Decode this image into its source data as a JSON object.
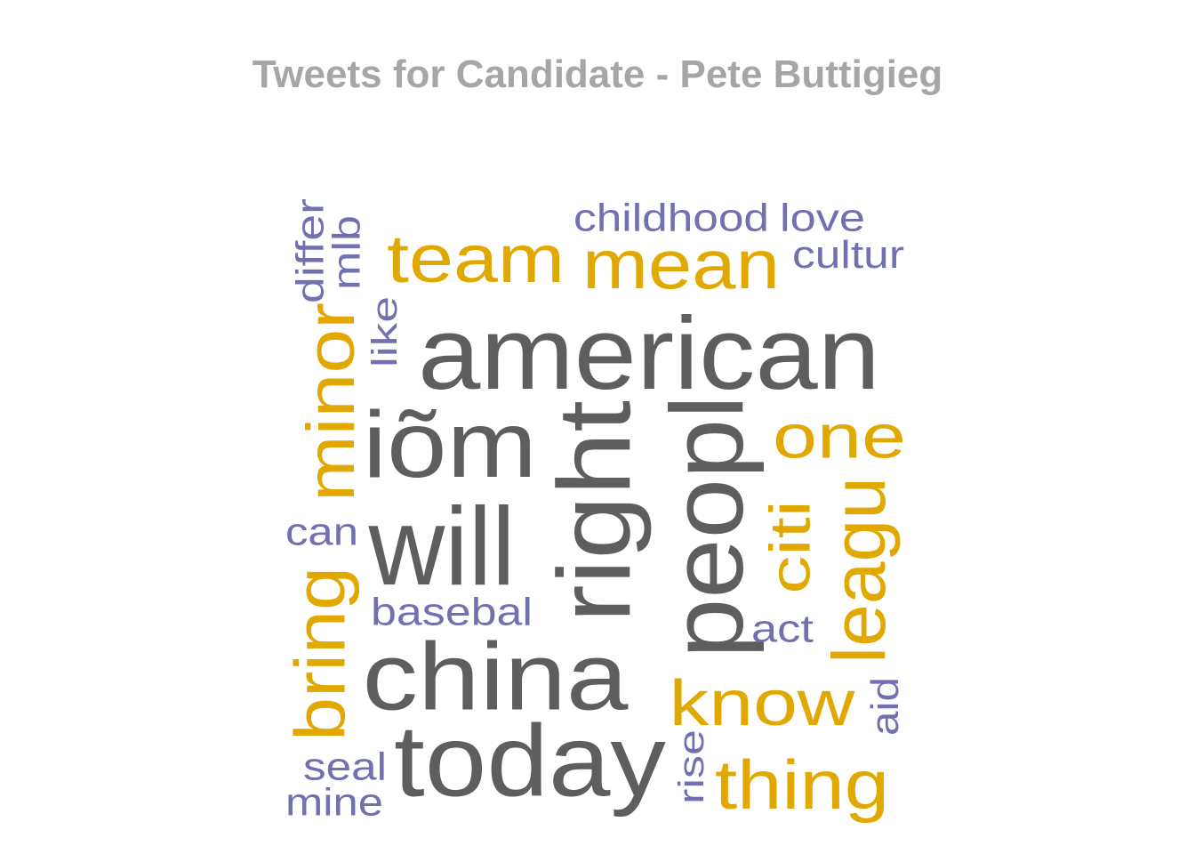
{
  "chart_data": {
    "type": "wordcloud",
    "title": "Tweets for Candidate - Pete Buttigieg",
    "colors": {
      "top": "#5e5e5e",
      "mid": "#e0a800",
      "low": "#7270b0",
      "title": "#a6a6a6"
    },
    "words": [
      {
        "text": "american",
        "tier": "top"
      },
      {
        "text": "iõm",
        "tier": "top"
      },
      {
        "text": "will",
        "tier": "top"
      },
      {
        "text": "china",
        "tier": "top"
      },
      {
        "text": "today",
        "tier": "top"
      },
      {
        "text": "right",
        "tier": "top"
      },
      {
        "text": "peopl",
        "tier": "top"
      },
      {
        "text": "team",
        "tier": "mid"
      },
      {
        "text": "mean",
        "tier": "mid"
      },
      {
        "text": "minor",
        "tier": "mid"
      },
      {
        "text": "one",
        "tier": "mid"
      },
      {
        "text": "citi",
        "tier": "mid"
      },
      {
        "text": "leagu",
        "tier": "mid"
      },
      {
        "text": "bring",
        "tier": "mid"
      },
      {
        "text": "know",
        "tier": "mid"
      },
      {
        "text": "thing",
        "tier": "mid"
      },
      {
        "text": "childhood",
        "tier": "low"
      },
      {
        "text": "love",
        "tier": "low"
      },
      {
        "text": "cultur",
        "tier": "low"
      },
      {
        "text": "differ",
        "tier": "low"
      },
      {
        "text": "mlb",
        "tier": "low"
      },
      {
        "text": "like",
        "tier": "low"
      },
      {
        "text": "can",
        "tier": "low"
      },
      {
        "text": "basebal",
        "tier": "low"
      },
      {
        "text": "act",
        "tier": "low"
      },
      {
        "text": "aid",
        "tier": "low"
      },
      {
        "text": "rise",
        "tier": "low"
      },
      {
        "text": "seal",
        "tier": "low"
      },
      {
        "text": "mine",
        "tier": "low"
      }
    ]
  }
}
